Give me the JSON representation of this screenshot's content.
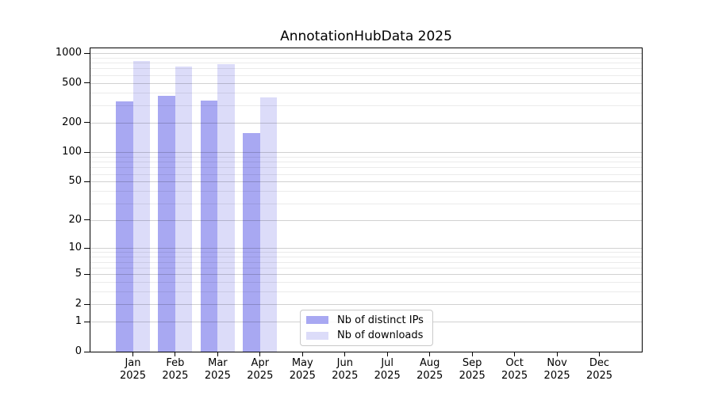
{
  "chart_data": {
    "type": "bar",
    "title": "AnnotationHubData 2025",
    "categories": [
      "Jan 2025",
      "Feb 2025",
      "Mar 2025",
      "Apr 2025",
      "May 2025",
      "Jun 2025",
      "Jul 2025",
      "Aug 2025",
      "Sep 2025",
      "Oct 2025",
      "Nov 2025",
      "Dec 2025"
    ],
    "series": [
      {
        "name": "Nb of distinct IPs",
        "color": "#a8a8f2",
        "values": [
          325,
          370,
          335,
          155,
          null,
          null,
          null,
          null,
          null,
          null,
          null,
          null
        ]
      },
      {
        "name": "Nb of downloads",
        "color": "#dcdcf9",
        "values": [
          830,
          730,
          780,
          355,
          null,
          null,
          null,
          null,
          null,
          null,
          null,
          null
        ]
      }
    ],
    "xlabel": "",
    "ylabel": "",
    "y_scale": "log10(1+v)",
    "y_major_ticks": [
      0,
      1,
      2,
      5,
      10,
      20,
      50,
      100,
      200,
      500,
      1000
    ],
    "y_minor_ticks": [
      3,
      4,
      6,
      7,
      8,
      9,
      30,
      40,
      60,
      70,
      80,
      90,
      300,
      400,
      600,
      700,
      800,
      900
    ],
    "ylim": [
      0,
      1135
    ],
    "grid": "horizontal",
    "legend_position": "inside-bottom-center"
  }
}
